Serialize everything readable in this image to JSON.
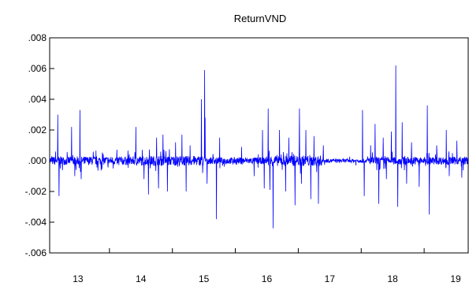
{
  "chart_data": {
    "type": "line",
    "title": "ReturnVND",
    "xlabel": "",
    "ylabel": "",
    "xlim": [
      12.55,
      19.2
    ],
    "ylim": [
      -0.006,
      0.008
    ],
    "grid": false,
    "y_ticks": [
      ".008",
      ".006",
      ".004",
      ".002",
      ".000",
      "-.002",
      "-.004",
      "-.006"
    ],
    "y_tick_values": [
      0.008,
      0.006,
      0.004,
      0.002,
      0.0,
      -0.002,
      -0.004,
      -0.006
    ],
    "x_ticks": [
      "13",
      "14",
      "15",
      "16",
      "17",
      "18",
      "19"
    ],
    "x_tick_values": [
      13,
      14,
      15,
      16,
      17,
      18,
      19
    ],
    "series": [
      {
        "color": "#0000ff",
        "noise_by_year": [
          {
            "from": 12.55,
            "to": 13.9,
            "amplitude": 0.00028
          },
          {
            "from": 13.9,
            "to": 15.0,
            "amplitude": 0.00032
          },
          {
            "from": 15.0,
            "to": 16.0,
            "amplitude": 0.00022
          },
          {
            "from": 16.0,
            "to": 16.9,
            "amplitude": 0.00035
          },
          {
            "from": 16.9,
            "to": 17.6,
            "amplitude": 0.00012
          },
          {
            "from": 17.6,
            "to": 19.2,
            "amplitude": 0.00025
          }
        ],
        "spikes": [
          {
            "x": 12.68,
            "y": 0.003
          },
          {
            "x": 12.7,
            "y": -0.0023
          },
          {
            "x": 12.9,
            "y": 0.0022
          },
          {
            "x": 12.95,
            "y": -0.001
          },
          {
            "x": 13.03,
            "y": 0.0033
          },
          {
            "x": 13.05,
            "y": -0.0012
          },
          {
            "x": 13.92,
            "y": 0.0022
          },
          {
            "x": 14.05,
            "y": -0.0012
          },
          {
            "x": 14.12,
            "y": -0.0022
          },
          {
            "x": 14.25,
            "y": 0.0015
          },
          {
            "x": 14.28,
            "y": -0.0018
          },
          {
            "x": 14.35,
            "y": 0.0017
          },
          {
            "x": 14.42,
            "y": -0.002
          },
          {
            "x": 14.55,
            "y": 0.0012
          },
          {
            "x": 14.65,
            "y": 0.0017
          },
          {
            "x": 14.72,
            "y": -0.002
          },
          {
            "x": 14.78,
            "y": 0.001
          },
          {
            "x": 14.96,
            "y": 0.004
          },
          {
            "x": 14.98,
            "y": -0.0008
          },
          {
            "x": 15.01,
            "y": 0.0059
          },
          {
            "x": 15.02,
            "y": 0.0028
          },
          {
            "x": 15.05,
            "y": -0.0015
          },
          {
            "x": 15.2,
            "y": -0.0038
          },
          {
            "x": 15.25,
            "y": 0.0015
          },
          {
            "x": 15.6,
            "y": 0.0009
          },
          {
            "x": 15.8,
            "y": -0.001
          },
          {
            "x": 15.93,
            "y": 0.002
          },
          {
            "x": 15.96,
            "y": -0.0018
          },
          {
            "x": 16.02,
            "y": 0.0034
          },
          {
            "x": 16.05,
            "y": -0.0019
          },
          {
            "x": 16.1,
            "y": -0.0044
          },
          {
            "x": 16.2,
            "y": 0.002
          },
          {
            "x": 16.3,
            "y": -0.002
          },
          {
            "x": 16.35,
            "y": 0.0015
          },
          {
            "x": 16.45,
            "y": -0.0029
          },
          {
            "x": 16.52,
            "y": 0.0034
          },
          {
            "x": 16.55,
            "y": -0.0015
          },
          {
            "x": 16.62,
            "y": 0.002
          },
          {
            "x": 16.7,
            "y": -0.0025
          },
          {
            "x": 16.75,
            "y": 0.0016
          },
          {
            "x": 16.82,
            "y": -0.0028
          },
          {
            "x": 16.9,
            "y": 0.001
          },
          {
            "x": 17.52,
            "y": 0.0033
          },
          {
            "x": 17.55,
            "y": -0.0023
          },
          {
            "x": 17.65,
            "y": 0.001
          },
          {
            "x": 17.72,
            "y": 0.0024
          },
          {
            "x": 17.78,
            "y": -0.0028
          },
          {
            "x": 17.85,
            "y": 0.0015
          },
          {
            "x": 17.9,
            "y": -0.0012
          },
          {
            "x": 17.98,
            "y": 0.0019
          },
          {
            "x": 18.05,
            "y": 0.0062
          },
          {
            "x": 18.08,
            "y": -0.003
          },
          {
            "x": 18.15,
            "y": 0.0025
          },
          {
            "x": 18.22,
            "y": -0.0015
          },
          {
            "x": 18.3,
            "y": 0.0012
          },
          {
            "x": 18.42,
            "y": -0.0017
          },
          {
            "x": 18.55,
            "y": 0.0036
          },
          {
            "x": 18.58,
            "y": -0.0035
          },
          {
            "x": 18.7,
            "y": 0.001
          },
          {
            "x": 18.85,
            "y": 0.002
          },
          {
            "x": 18.9,
            "y": -0.001
          },
          {
            "x": 19.02,
            "y": 0.0013
          },
          {
            "x": 19.1,
            "y": -0.0011
          }
        ]
      }
    ]
  }
}
